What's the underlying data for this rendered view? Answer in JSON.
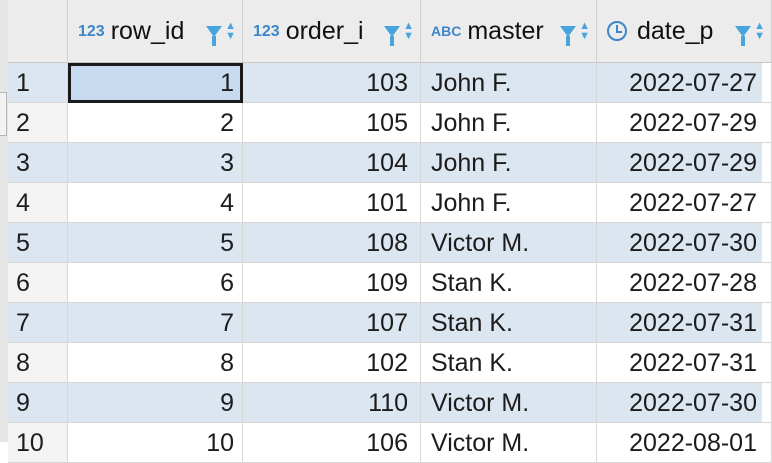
{
  "columns": [
    {
      "type_icon": "123",
      "name": "row_id"
    },
    {
      "type_icon": "123",
      "name": "order_i"
    },
    {
      "type_icon": "ABC",
      "name": "master"
    },
    {
      "type_icon": "clock-icon",
      "name": "date_p"
    }
  ],
  "rows": [
    {
      "num": "1",
      "row_id": "1",
      "order_id": "103",
      "master": "John F.",
      "date": "2022-07-27"
    },
    {
      "num": "2",
      "row_id": "2",
      "order_id": "105",
      "master": "John F.",
      "date": "2022-07-29"
    },
    {
      "num": "3",
      "row_id": "3",
      "order_id": "104",
      "master": "John F.",
      "date": "2022-07-29"
    },
    {
      "num": "4",
      "row_id": "4",
      "order_id": "101",
      "master": "John F.",
      "date": "2022-07-27"
    },
    {
      "num": "5",
      "row_id": "5",
      "order_id": "108",
      "master": "Victor M.",
      "date": "2022-07-30"
    },
    {
      "num": "6",
      "row_id": "6",
      "order_id": "109",
      "master": "Stan K.",
      "date": "2022-07-28"
    },
    {
      "num": "7",
      "row_id": "7",
      "order_id": "107",
      "master": "Stan K.",
      "date": "2022-07-31"
    },
    {
      "num": "8",
      "row_id": "8",
      "order_id": "102",
      "master": "Stan K.",
      "date": "2022-07-31"
    },
    {
      "num": "9",
      "row_id": "9",
      "order_id": "110",
      "master": "Victor M.",
      "date": "2022-07-30"
    },
    {
      "num": "10",
      "row_id": "10",
      "order_id": "106",
      "master": "Victor M.",
      "date": "2022-08-01"
    }
  ],
  "colors": {
    "accent": "#3e86c9",
    "row_alt": "#dce6f1",
    "selected": "#c7daf0"
  }
}
